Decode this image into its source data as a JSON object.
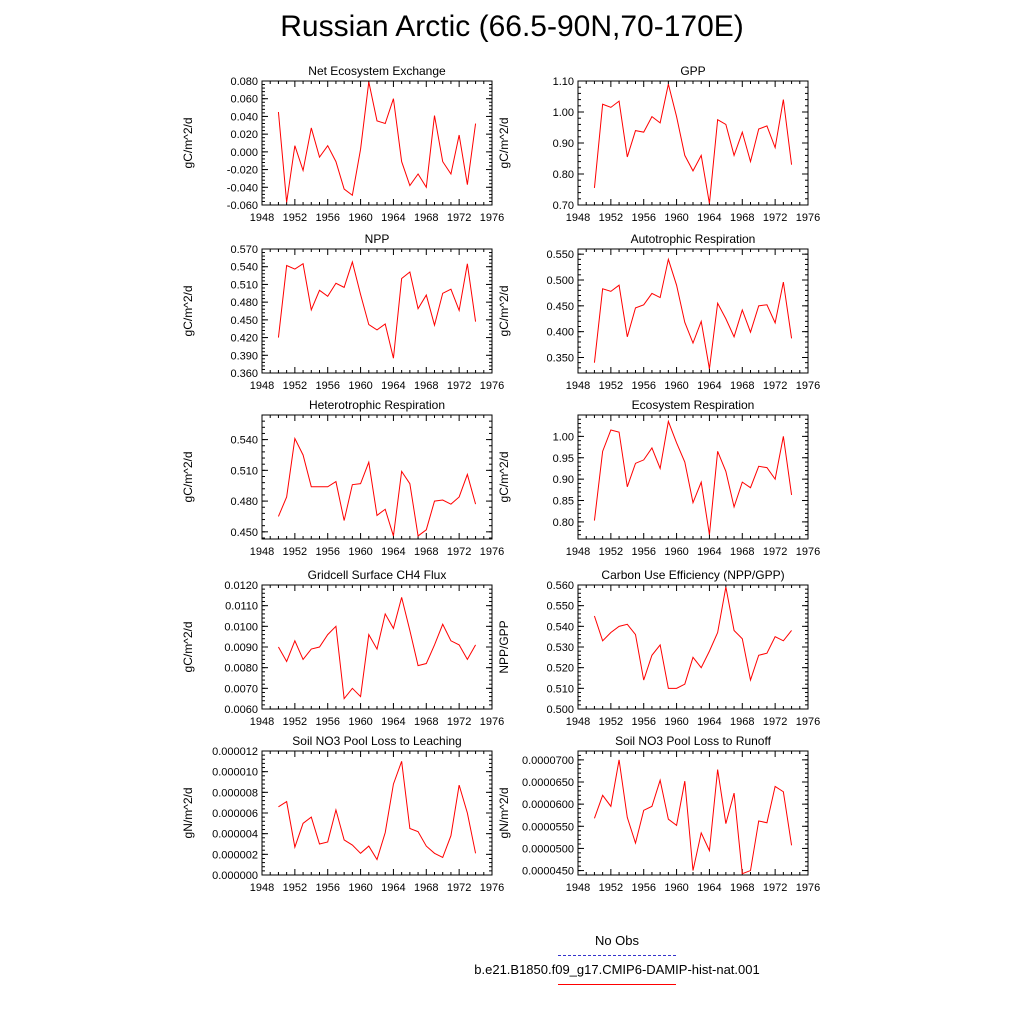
{
  "title": "Russian Arctic (66.5-90N,70-170E)",
  "legend": {
    "items": [
      {
        "label": "No Obs",
        "color": "#3333cc",
        "style": "dashed"
      },
      {
        "label": "b.e21.B1850.f09_g17.CMIP6-DAMIP-hist-nat.001",
        "color": "#ff0000",
        "style": "solid"
      }
    ]
  },
  "chart_data": [
    {
      "type": "line",
      "title": "Net Ecosystem Exchange",
      "ylabel": "gC/m^2/d",
      "xlim": [
        1948,
        1976
      ],
      "ylim": [
        -0.06,
        0.08
      ],
      "xticks": [
        "1948",
        "1952",
        "1956",
        "1960",
        "1964",
        "1968",
        "1972",
        "1976"
      ],
      "yticks": [
        "-0.060",
        "-0.040",
        "-0.020",
        "0.000",
        "0.020",
        "0.040",
        "0.060",
        "0.080"
      ],
      "series": [
        {
          "color": "#ff0000",
          "x": [
            1950,
            1951,
            1952,
            1953,
            1954,
            1955,
            1956,
            1957,
            1958,
            1959,
            1960,
            1961,
            1962,
            1963,
            1964,
            1965,
            1966,
            1967,
            1968,
            1969,
            1970,
            1971,
            1972,
            1973,
            1974
          ],
          "y": [
            0.045,
            -0.057,
            0.007,
            -0.021,
            0.027,
            -0.006,
            0.007,
            -0.011,
            -0.042,
            -0.049,
            0.003,
            0.079,
            0.035,
            0.032,
            0.06,
            -0.011,
            -0.038,
            -0.025,
            -0.04,
            0.041,
            -0.011,
            -0.025,
            0.019,
            -0.037,
            0.032
          ]
        }
      ]
    },
    {
      "type": "line",
      "title": "GPP",
      "ylabel": "gC/m^2/d",
      "xlim": [
        1948,
        1976
      ],
      "ylim": [
        0.7,
        1.1
      ],
      "xticks": [
        "1948",
        "1952",
        "1956",
        "1960",
        "1964",
        "1968",
        "1972",
        "1976"
      ],
      "yticks": [
        "0.70",
        "0.80",
        "0.90",
        "1.00",
        "1.10"
      ],
      "series": [
        {
          "color": "#ff0000",
          "x": [
            1950,
            1951,
            1952,
            1953,
            1954,
            1955,
            1956,
            1957,
            1958,
            1959,
            1960,
            1961,
            1962,
            1963,
            1964,
            1965,
            1966,
            1967,
            1968,
            1969,
            1970,
            1971,
            1972,
            1973,
            1974
          ],
          "y": [
            0.755,
            1.025,
            1.015,
            1.035,
            0.855,
            0.94,
            0.935,
            0.985,
            0.965,
            1.09,
            0.985,
            0.86,
            0.81,
            0.86,
            0.705,
            0.975,
            0.96,
            0.86,
            0.935,
            0.84,
            0.945,
            0.955,
            0.885,
            1.04,
            0.83
          ]
        }
      ]
    },
    {
      "type": "line",
      "title": "NPP",
      "ylabel": "gC/m^2/d",
      "xlim": [
        1948,
        1976
      ],
      "ylim": [
        0.36,
        0.57
      ],
      "xticks": [
        "1948",
        "1952",
        "1956",
        "1960",
        "1964",
        "1968",
        "1972",
        "1976"
      ],
      "yticks": [
        "0.360",
        "0.390",
        "0.420",
        "0.450",
        "0.480",
        "0.510",
        "0.540",
        "0.570"
      ],
      "series": [
        {
          "color": "#ff0000",
          "x": [
            1950,
            1951,
            1952,
            1953,
            1954,
            1955,
            1956,
            1957,
            1958,
            1959,
            1960,
            1961,
            1962,
            1963,
            1964,
            1965,
            1966,
            1967,
            1968,
            1969,
            1970,
            1971,
            1972,
            1973,
            1974
          ],
          "y": [
            0.42,
            0.542,
            0.536,
            0.545,
            0.467,
            0.5,
            0.49,
            0.512,
            0.505,
            0.548,
            0.493,
            0.442,
            0.433,
            0.443,
            0.385,
            0.52,
            0.531,
            0.469,
            0.492,
            0.441,
            0.495,
            0.502,
            0.466,
            0.545,
            0.447
          ]
        }
      ]
    },
    {
      "type": "line",
      "title": "Autotrophic Respiration",
      "ylabel": "gC/m^2/d",
      "xlim": [
        1948,
        1976
      ],
      "ylim": [
        0.32,
        0.56
      ],
      "xticks": [
        "1948",
        "1952",
        "1956",
        "1960",
        "1964",
        "1968",
        "1972",
        "1976"
      ],
      "yticks": [
        "0.350",
        "0.400",
        "0.450",
        "0.500",
        "0.550"
      ],
      "series": [
        {
          "color": "#ff0000",
          "x": [
            1950,
            1951,
            1952,
            1953,
            1954,
            1955,
            1956,
            1957,
            1958,
            1959,
            1960,
            1961,
            1962,
            1963,
            1964,
            1965,
            1966,
            1967,
            1968,
            1969,
            1970,
            1971,
            1972,
            1973,
            1974
          ],
          "y": [
            0.34,
            0.483,
            0.478,
            0.49,
            0.39,
            0.446,
            0.452,
            0.474,
            0.466,
            0.54,
            0.49,
            0.418,
            0.378,
            0.42,
            0.328,
            0.455,
            0.425,
            0.39,
            0.442,
            0.399,
            0.45,
            0.452,
            0.417,
            0.496,
            0.387
          ]
        }
      ]
    },
    {
      "type": "line",
      "title": "Heterotrophic Respiration",
      "ylabel": "gC/m^2/d",
      "xlim": [
        1948,
        1976
      ],
      "ylim": [
        0.443,
        0.564
      ],
      "xticks": [
        "1948",
        "1952",
        "1956",
        "1960",
        "1964",
        "1968",
        "1972",
        "1976"
      ],
      "yticks": [
        "0.450",
        "0.480",
        "0.510",
        "0.540"
      ],
      "series": [
        {
          "color": "#ff0000",
          "x": [
            1950,
            1951,
            1952,
            1953,
            1954,
            1955,
            1956,
            1957,
            1958,
            1959,
            1960,
            1961,
            1962,
            1963,
            1964,
            1965,
            1966,
            1967,
            1968,
            1969,
            1970,
            1971,
            1972,
            1973,
            1974
          ],
          "y": [
            0.465,
            0.484,
            0.541,
            0.525,
            0.494,
            0.494,
            0.494,
            0.499,
            0.461,
            0.496,
            0.497,
            0.518,
            0.466,
            0.472,
            0.446,
            0.509,
            0.497,
            0.446,
            0.452,
            0.48,
            0.481,
            0.477,
            0.484,
            0.506,
            0.477
          ]
        }
      ]
    },
    {
      "type": "line",
      "title": "Ecosystem Respiration",
      "ylabel": "gC/m^2/d",
      "xlim": [
        1948,
        1976
      ],
      "ylim": [
        0.76,
        1.05
      ],
      "xticks": [
        "1948",
        "1952",
        "1956",
        "1960",
        "1964",
        "1968",
        "1972",
        "1976"
      ],
      "yticks": [
        "0.80",
        "0.85",
        "0.90",
        "0.95",
        "1.00"
      ],
      "series": [
        {
          "color": "#ff0000",
          "x": [
            1950,
            1951,
            1952,
            1953,
            1954,
            1955,
            1956,
            1957,
            1958,
            1959,
            1960,
            1961,
            1962,
            1963,
            1964,
            1965,
            1966,
            1967,
            1968,
            1969,
            1970,
            1971,
            1972,
            1973,
            1974
          ],
          "y": [
            0.803,
            0.965,
            1.015,
            1.01,
            0.882,
            0.937,
            0.945,
            0.973,
            0.925,
            1.035,
            0.985,
            0.94,
            0.845,
            0.893,
            0.77,
            0.965,
            0.918,
            0.835,
            0.893,
            0.88,
            0.93,
            0.927,
            0.9,
            1.0,
            0.863
          ]
        }
      ]
    },
    {
      "type": "line",
      "title": "Gridcell Surface CH4 Flux",
      "ylabel": "gC/m^2/d",
      "xlim": [
        1948,
        1976
      ],
      "ylim": [
        0.006,
        0.012
      ],
      "xticks": [
        "1948",
        "1952",
        "1956",
        "1960",
        "1964",
        "1968",
        "1972",
        "1976"
      ],
      "yticks": [
        "0.0060",
        "0.0070",
        "0.0080",
        "0.0090",
        "0.0100",
        "0.0110",
        "0.0120"
      ],
      "series": [
        {
          "color": "#ff0000",
          "x": [
            1950,
            1951,
            1952,
            1953,
            1954,
            1955,
            1956,
            1957,
            1958,
            1959,
            1960,
            1961,
            1962,
            1963,
            1964,
            1965,
            1966,
            1967,
            1968,
            1969,
            1970,
            1971,
            1972,
            1973,
            1974
          ],
          "y": [
            0.009,
            0.0083,
            0.0093,
            0.0084,
            0.0089,
            0.009,
            0.0096,
            0.01,
            0.0065,
            0.007,
            0.0066,
            0.0096,
            0.0089,
            0.0106,
            0.0099,
            0.0114,
            0.0098,
            0.0081,
            0.0082,
            0.0091,
            0.0101,
            0.0093,
            0.0091,
            0.0084,
            0.0091
          ]
        }
      ]
    },
    {
      "type": "line",
      "title": "Carbon Use Efficiency (NPP/GPP)",
      "ylabel": "NPP/GPP",
      "xlim": [
        1948,
        1976
      ],
      "ylim": [
        0.5,
        0.56
      ],
      "xticks": [
        "1948",
        "1952",
        "1956",
        "1960",
        "1964",
        "1968",
        "1972",
        "1976"
      ],
      "yticks": [
        "0.500",
        "0.510",
        "0.520",
        "0.530",
        "0.540",
        "0.550",
        "0.560"
      ],
      "series": [
        {
          "color": "#ff0000",
          "x": [
            1950,
            1951,
            1952,
            1953,
            1954,
            1955,
            1956,
            1957,
            1958,
            1959,
            1960,
            1961,
            1962,
            1963,
            1964,
            1965,
            1966,
            1967,
            1968,
            1969,
            1970,
            1971,
            1972,
            1973,
            1974
          ],
          "y": [
            0.545,
            0.533,
            0.537,
            0.54,
            0.541,
            0.536,
            0.514,
            0.526,
            0.531,
            0.51,
            0.51,
            0.512,
            0.525,
            0.52,
            0.528,
            0.537,
            0.559,
            0.538,
            0.534,
            0.514,
            0.526,
            0.527,
            0.535,
            0.533,
            0.538
          ]
        }
      ]
    },
    {
      "type": "line",
      "title": "Soil NO3 Pool Loss to Leaching",
      "ylabel": "gN/m^2/d",
      "xlim": [
        1948,
        1976
      ],
      "ylim": [
        0.0,
        1.2e-05
      ],
      "xticks": [
        "1948",
        "1952",
        "1956",
        "1960",
        "1964",
        "1968",
        "1972",
        "1976"
      ],
      "yticks": [
        "0.000000",
        "0.000002",
        "0.000004",
        "0.000006",
        "0.000008",
        "0.000010",
        "0.000012"
      ],
      "series": [
        {
          "color": "#ff0000",
          "x": [
            1950,
            1951,
            1952,
            1953,
            1954,
            1955,
            1956,
            1957,
            1958,
            1959,
            1960,
            1961,
            1962,
            1963,
            1964,
            1965,
            1966,
            1967,
            1968,
            1969,
            1970,
            1971,
            1972,
            1973,
            1974
          ],
          "y": [
            6.6e-06,
            7.1e-06,
            2.7e-06,
            5e-06,
            5.6e-06,
            3e-06,
            3.2e-06,
            6.3e-06,
            3.4e-06,
            2.9e-06,
            2.1e-06,
            2.8e-06,
            1.5e-06,
            4.1e-06,
            8.8e-06,
            1.1e-05,
            4.5e-06,
            4.2e-06,
            2.8e-06,
            2.1e-06,
            1.7e-06,
            3.8e-06,
            8.7e-06,
            6e-06,
            2.1e-06
          ]
        }
      ]
    },
    {
      "type": "line",
      "title": "Soil NO3 Pool Loss to Runoff",
      "ylabel": "gN/m^2/d",
      "xlim": [
        1948,
        1976
      ],
      "ylim": [
        4.4e-05,
        7.2e-05
      ],
      "xticks": [
        "1948",
        "1952",
        "1956",
        "1960",
        "1964",
        "1968",
        "1972",
        "1976"
      ],
      "yticks": [
        "0.0000450",
        "0.0000500",
        "0.0000550",
        "0.0000600",
        "0.0000650",
        "0.0000700"
      ],
      "series": [
        {
          "color": "#ff0000",
          "x": [
            1950,
            1951,
            1952,
            1953,
            1954,
            1955,
            1956,
            1957,
            1958,
            1959,
            1960,
            1961,
            1962,
            1963,
            1964,
            1965,
            1966,
            1967,
            1968,
            1969,
            1970,
            1971,
            1972,
            1973,
            1974
          ],
          "y": [
            5.68e-05,
            6.2e-05,
            5.95e-05,
            7e-05,
            5.7e-05,
            5.12e-05,
            5.86e-05,
            5.95e-05,
            6.54e-05,
            5.66e-05,
            5.52e-05,
            6.52e-05,
            4.5e-05,
            5.35e-05,
            4.95e-05,
            6.78e-05,
            5.56e-05,
            6.25e-05,
            4.43e-05,
            4.5e-05,
            5.62e-05,
            5.58e-05,
            6.4e-05,
            6.28e-05,
            5.07e-05
          ]
        }
      ]
    }
  ]
}
